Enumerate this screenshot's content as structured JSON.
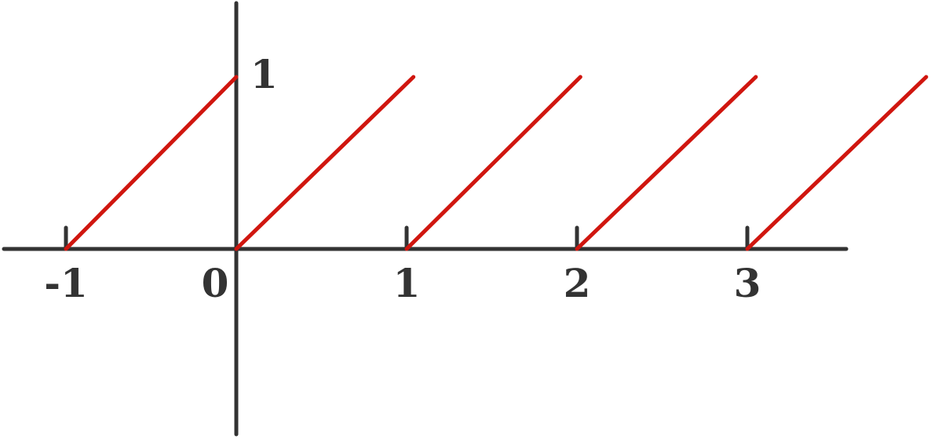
{
  "chart_data": {
    "type": "line",
    "title": "",
    "xlabel": "",
    "ylabel": "",
    "xlim": [
      -1.05,
      3.5
    ],
    "ylim": [
      -1.08,
      1.38
    ],
    "grid": false,
    "x_ticks": [
      {
        "value": -1,
        "label": "-1"
      },
      {
        "value": 0,
        "label": "0"
      },
      {
        "value": 1,
        "label": "1"
      },
      {
        "value": 2,
        "label": "2"
      },
      {
        "value": 3,
        "label": "3"
      }
    ],
    "y_ticks": [
      {
        "value": 1,
        "label": "1"
      }
    ],
    "series": [
      {
        "color": "#d0160f",
        "segments": [
          [
            [
              -1,
              0
            ],
            [
              0,
              1
            ]
          ],
          [
            [
              0,
              0
            ],
            [
              1.04,
              1
            ]
          ],
          [
            [
              1,
              0
            ],
            [
              2.02,
              1
            ]
          ],
          [
            [
              2,
              0
            ],
            [
              3.05,
              1
            ]
          ],
          [
            [
              3,
              0
            ],
            [
              4.05,
              1
            ]
          ]
        ]
      }
    ],
    "colors": {
      "axis": "#333333",
      "series": "#d0160f"
    }
  }
}
